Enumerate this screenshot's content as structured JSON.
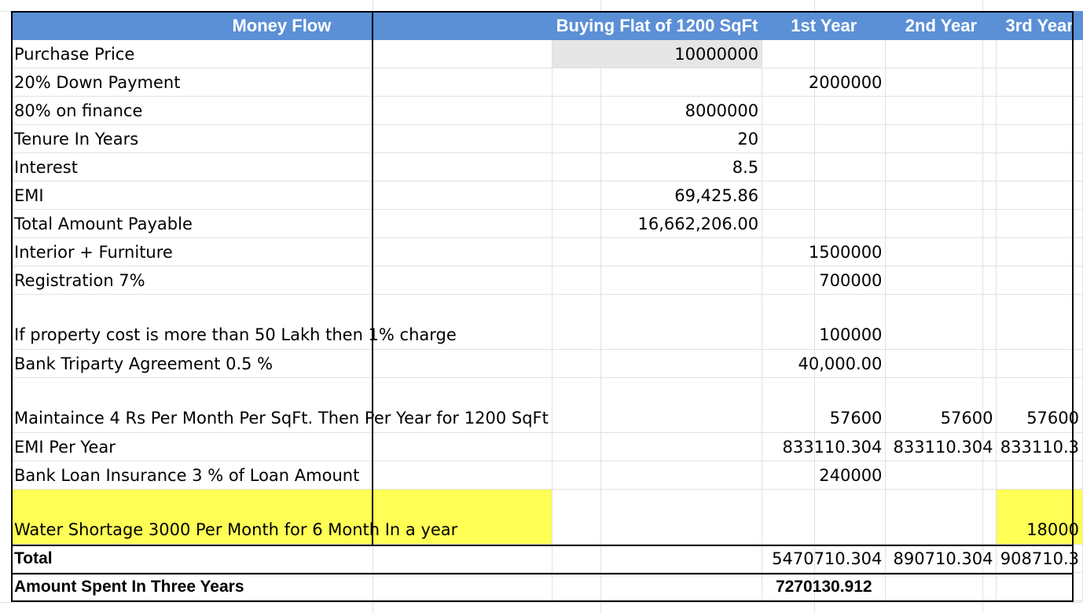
{
  "header": {
    "col_a": "Money Flow",
    "col_b": "Buying Flat of 1200 SqFt",
    "col_c": "1st Year",
    "col_d": "2nd Year",
    "col_e": "3rd Year"
  },
  "rows": [
    {
      "label": "Purchase Price",
      "b": "10000000",
      "c": "",
      "d": "",
      "e": ""
    },
    {
      "label": "20% Down Payment",
      "b": "",
      "c": "2000000",
      "d": "",
      "e": ""
    },
    {
      "label": "80% on finance",
      "b": "8000000",
      "c": "",
      "d": "",
      "e": ""
    },
    {
      "label": "Tenure In Years",
      "b": "20",
      "c": "",
      "d": "",
      "e": ""
    },
    {
      "label": "Interest",
      "b": "8.5",
      "c": "",
      "d": "",
      "e": ""
    },
    {
      "label": "EMI",
      "b": "69,425.86",
      "c": "",
      "d": "",
      "e": ""
    },
    {
      "label": "Total Amount Payable",
      "b": "16,662,206.00",
      "c": "",
      "d": "",
      "e": ""
    },
    {
      "label": "Interior + Furniture",
      "b": "",
      "c": "1500000",
      "d": "",
      "e": ""
    },
    {
      "label": "Registration 7%",
      "b": "",
      "c": "700000",
      "d": "",
      "e": ""
    },
    {
      "label": "If property cost is more than 50 Lakh then 1% charge",
      "b": "",
      "c": "100000",
      "d": "",
      "e": ""
    },
    {
      "label": "Bank Triparty Agreement 0.5 %",
      "b": "",
      "c": "40,000.00",
      "d": "",
      "e": ""
    },
    {
      "label": "Maintaince 4 Rs Per Month Per SqFt. Then Per Year for 1200 SqFt",
      "b": "",
      "c": "57600",
      "d": "57600",
      "e": "57600"
    },
    {
      "label": "EMI Per Year",
      "b": "",
      "c": "833110.304",
      "d": "833110.304",
      "e": "833110.3"
    },
    {
      "label": "Bank Loan Insurance 3 % of Loan Amount",
      "b": "",
      "c": "240000",
      "d": "",
      "e": ""
    },
    {
      "label": "Water Shortage 3000 Per Month for 6 Month In a year",
      "b": "",
      "c": "",
      "d": "",
      "e": "18000"
    }
  ],
  "total": {
    "label": "Total",
    "b": "",
    "c": "5470710.304",
    "d": "890710.304",
    "e": "908710.3"
  },
  "spent": {
    "label": "Amount Spent In Three Years",
    "c": "7270130.912"
  },
  "colors": {
    "header_bg": "#5b8fd6",
    "highlight": "#ffff55",
    "input_cell": "#e6e6e6"
  }
}
